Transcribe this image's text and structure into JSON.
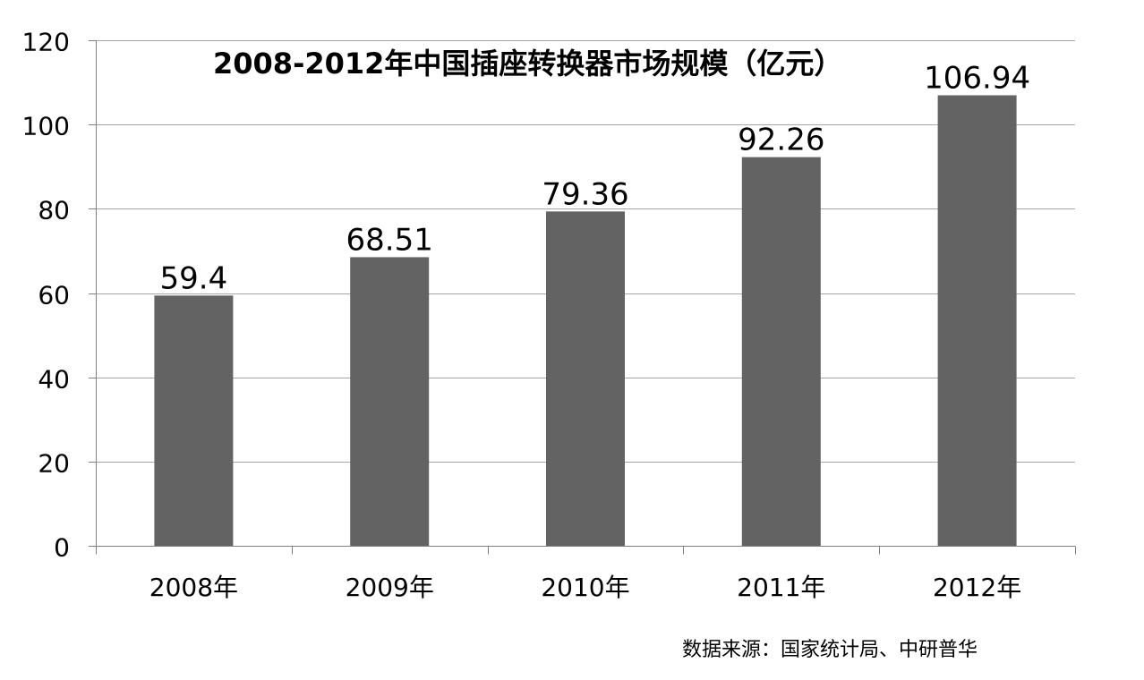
{
  "chart_data": {
    "type": "bar",
    "title": "2008-2012年中国插座转换器市场规模（亿元）",
    "categories": [
      "2008年",
      "2009年",
      "2010年",
      "2011年",
      "2012年"
    ],
    "values": [
      59.4,
      68.51,
      79.36,
      92.26,
      106.94
    ],
    "value_labels": [
      "59.4",
      "68.51",
      "79.36",
      "92.26",
      "106.94"
    ],
    "ylim": [
      0,
      120
    ],
    "yticks": [
      0,
      20,
      40,
      60,
      80,
      100,
      120
    ],
    "xlabel": "",
    "ylabel": "",
    "grid": true,
    "legend": "none",
    "bar_color": "#636363",
    "grid_color": "#a6a6a6"
  },
  "source_note": "数据来源：国家统计局、中研普华"
}
